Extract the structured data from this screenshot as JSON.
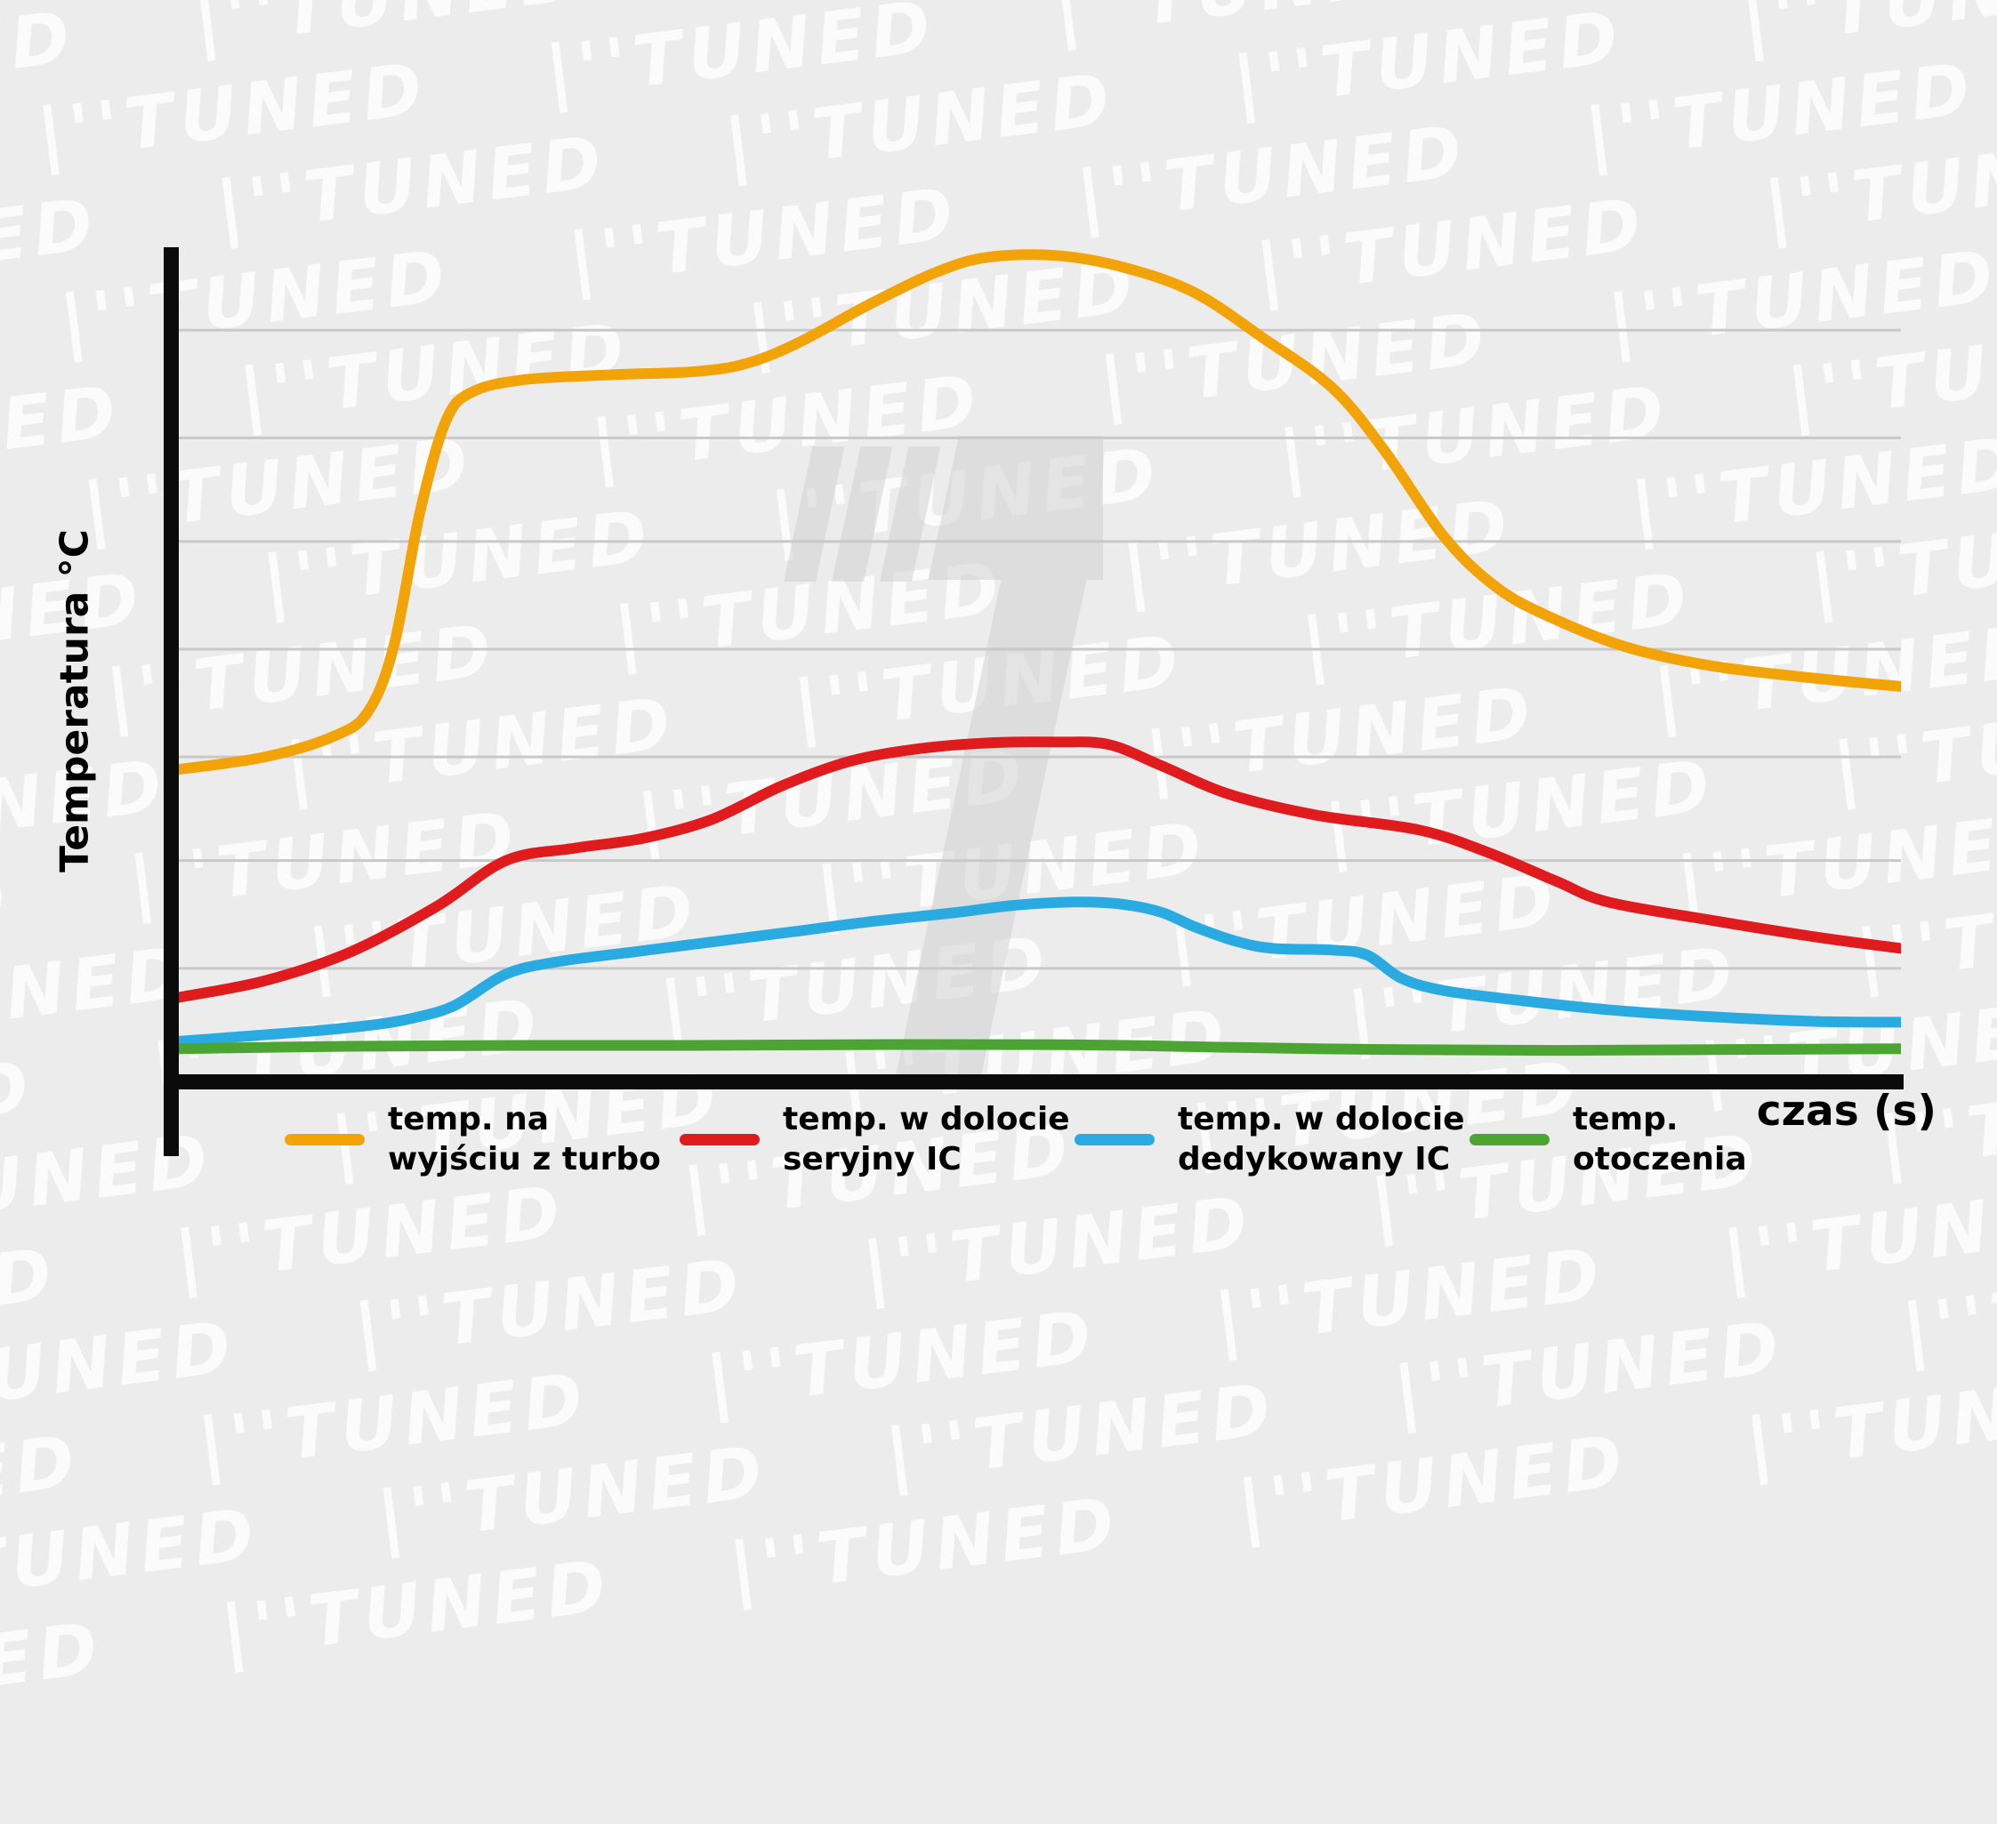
{
  "page": {
    "background": "#ececec"
  },
  "watermark": {
    "unit": "|''TUNED",
    "logo": "tuned-t-logo"
  },
  "chart_data": {
    "type": "line",
    "title": "",
    "xlabel": "czas (s)",
    "ylabel": "Temperatura °C",
    "xlim": [
      0,
      100
    ],
    "ylim": [
      0,
      100
    ],
    "grid": "horizontal",
    "gridline_values": [
      13,
      26,
      38.5,
      51.5,
      64.5,
      77,
      90
    ],
    "gridline_color": "#c8c8c8",
    "axis_color": "#0b0b0b",
    "legend_position": "bottom",
    "series": [
      {
        "name": "temp. na wyjściu z turbo",
        "legend_lines": [
          "temp. na",
          "wyjściu z turbo"
        ],
        "color": "#F2A307",
        "x": [
          0,
          5,
          9,
          11,
          12.5,
          14,
          15.5,
          17,
          20,
          25,
          30,
          33,
          36,
          40,
          44,
          47,
          51,
          55,
          59,
          63,
          67,
          70,
          73.5,
          76.5,
          79.5,
          84,
          89,
          95,
          100
        ],
        "values": [
          37,
          38.5,
          41,
          44,
          52,
          68,
          79,
          82.5,
          84,
          84.6,
          85,
          86,
          88.5,
          93,
          97,
          98.8,
          99,
          97.5,
          94.5,
          89,
          83,
          75.5,
          65,
          59,
          55.5,
          51.8,
          49.5,
          48,
          47
        ]
      },
      {
        "name": "temp. w dolocie seryjny IC",
        "legend_lines": [
          "temp. w dolocie",
          "seryjny IC"
        ],
        "color": "#E01B1E",
        "x": [
          0,
          5,
          10,
          15,
          19,
          23,
          27,
          31,
          35,
          39,
          43,
          47,
          51,
          54,
          57,
          61,
          66,
          72,
          76,
          80,
          83,
          89,
          95,
          100
        ],
        "values": [
          9.5,
          11.5,
          15,
          20.5,
          26,
          27.5,
          28.7,
          31,
          35,
          38,
          39.5,
          40.2,
          40.3,
          40,
          37.5,
          34,
          31.5,
          29.7,
          27,
          23.5,
          21,
          18.8,
          16.8,
          15.4
        ]
      },
      {
        "name": "temp. w dolocie dedykowany IC",
        "legend_lines": [
          "temp. w dolocie",
          "dedykowany IC"
        ],
        "color": "#29ABE2",
        "x": [
          0,
          7.6,
          11.4,
          13.6,
          16,
          19,
          22,
          26.5,
          31,
          35.6,
          40,
          45,
          48.5,
          52,
          54.5,
          57,
          59,
          61.5,
          63.6,
          67,
          69,
          71,
          73.5,
          78,
          83,
          88.6,
          95,
          100
        ],
        "values": [
          4.2,
          5.4,
          6.2,
          7,
          8.5,
          12.3,
          13.8,
          15,
          16.2,
          17.4,
          18.6,
          19.7,
          20.6,
          21,
          20.8,
          19.8,
          18,
          16.2,
          15.4,
          15.2,
          14.6,
          11.8,
          10.3,
          9.1,
          8,
          7.2,
          6.6,
          6.5
        ]
      },
      {
        "name": "temp. otoczenia",
        "legend_lines": [
          "temp.",
          "otoczenia"
        ],
        "color": "#4CA533",
        "x": [
          0,
          10,
          20,
          30,
          40,
          50,
          55,
          60,
          70,
          80,
          90,
          100
        ],
        "values": [
          3.3,
          3.6,
          3.7,
          3.7,
          3.8,
          3.8,
          3.7,
          3.5,
          3.2,
          3.1,
          3.2,
          3.3
        ]
      }
    ]
  }
}
